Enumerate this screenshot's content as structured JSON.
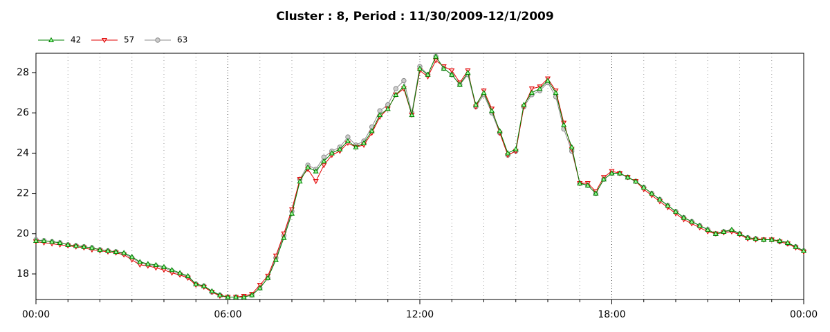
{
  "chart_data": {
    "type": "line",
    "title": "Cluster : 8, Period : 11/30/2009-12/1/2009",
    "x": [
      0,
      0.25,
      0.5,
      0.75,
      1,
      1.25,
      1.5,
      1.75,
      2,
      2.25,
      2.5,
      2.75,
      3,
      3.25,
      3.5,
      3.75,
      4,
      4.25,
      4.5,
      4.75,
      5,
      5.25,
      5.5,
      5.75,
      6,
      6.25,
      6.5,
      6.75,
      7,
      7.25,
      7.5,
      7.75,
      8,
      8.25,
      8.5,
      8.75,
      9,
      9.25,
      9.5,
      9.75,
      10,
      10.25,
      10.5,
      10.75,
      11,
      11.25,
      11.5,
      11.75,
      12,
      12.25,
      12.5,
      12.75,
      13,
      13.25,
      13.5,
      13.75,
      14,
      14.25,
      14.5,
      14.75,
      15,
      15.25,
      15.5,
      15.75,
      16,
      16.25,
      16.5,
      16.75,
      17,
      17.25,
      17.5,
      17.75,
      18,
      18.25,
      18.5,
      18.75,
      19,
      19.25,
      19.5,
      19.75,
      20,
      20.25,
      20.5,
      20.75,
      21,
      21.25,
      21.5,
      21.75,
      22,
      22.25,
      22.5,
      22.75,
      23,
      23.25,
      23.5,
      23.75,
      24
    ],
    "series": [
      {
        "name": "42",
        "color": "#008000",
        "marker": "triangle-up",
        "values": [
          19.65,
          19.65,
          19.6,
          19.55,
          19.45,
          19.4,
          19.35,
          19.3,
          19.2,
          19.15,
          19.1,
          19.05,
          18.85,
          18.6,
          18.5,
          18.45,
          18.35,
          18.2,
          18.05,
          17.9,
          17.5,
          17.4,
          17.15,
          16.95,
          16.85,
          16.85,
          16.85,
          16.95,
          17.3,
          17.8,
          18.7,
          19.8,
          21.0,
          22.6,
          23.3,
          23.1,
          23.6,
          24.0,
          24.2,
          24.6,
          24.3,
          24.5,
          25.1,
          25.9,
          26.2,
          26.9,
          27.3,
          25.9,
          28.2,
          27.9,
          28.8,
          28.2,
          27.9,
          27.4,
          28.0,
          26.4,
          27.0,
          26.1,
          25.1,
          24.0,
          24.2,
          26.4,
          27.0,
          27.2,
          27.6,
          27.0,
          25.4,
          24.3,
          22.5,
          22.4,
          22.0,
          22.7,
          23.0,
          23.0,
          22.8,
          22.6,
          22.3,
          22.0,
          21.7,
          21.4,
          21.1,
          20.8,
          20.6,
          20.4,
          20.2,
          20.0,
          20.1,
          20.2,
          20.0,
          19.8,
          19.75,
          19.7,
          19.7,
          19.65,
          19.55,
          19.35,
          19.15
        ]
      },
      {
        "name": "57",
        "color": "#e00000",
        "marker": "triangle-down",
        "values": [
          19.6,
          19.55,
          19.5,
          19.45,
          19.4,
          19.35,
          19.3,
          19.2,
          19.15,
          19.1,
          19.05,
          18.95,
          18.7,
          18.45,
          18.4,
          18.3,
          18.2,
          18.05,
          17.95,
          17.8,
          17.45,
          17.35,
          17.1,
          16.9,
          16.85,
          16.85,
          16.9,
          17.0,
          17.45,
          17.9,
          18.9,
          20.0,
          21.2,
          22.7,
          23.2,
          22.6,
          23.4,
          23.9,
          24.1,
          24.5,
          24.3,
          24.4,
          25.0,
          25.8,
          26.2,
          26.9,
          27.2,
          25.9,
          28.1,
          27.8,
          28.6,
          28.3,
          28.1,
          27.5,
          28.1,
          26.3,
          27.1,
          26.2,
          25.0,
          23.9,
          24.1,
          26.3,
          27.2,
          27.3,
          27.7,
          27.1,
          25.5,
          24.2,
          22.5,
          22.5,
          22.1,
          22.8,
          23.1,
          23.0,
          22.8,
          22.6,
          22.2,
          21.9,
          21.6,
          21.3,
          21.0,
          20.7,
          20.5,
          20.3,
          20.1,
          20.0,
          20.05,
          20.1,
          19.95,
          19.75,
          19.7,
          19.7,
          19.7,
          19.6,
          19.5,
          19.3,
          19.1
        ]
      },
      {
        "name": "63",
        "color": "#8c8c8c",
        "marker": "circle",
        "values": [
          19.7,
          19.65,
          19.6,
          19.55,
          19.45,
          19.4,
          19.35,
          19.3,
          19.2,
          19.15,
          19.1,
          19.0,
          18.8,
          18.55,
          18.45,
          18.4,
          18.3,
          18.15,
          18.0,
          17.85,
          17.5,
          17.4,
          17.1,
          16.95,
          16.85,
          16.85,
          16.85,
          16.95,
          17.3,
          17.8,
          18.8,
          19.9,
          21.1,
          22.7,
          23.4,
          23.2,
          23.8,
          24.1,
          24.3,
          24.8,
          24.4,
          24.6,
          25.3,
          26.1,
          26.4,
          27.2,
          27.6,
          26.0,
          28.3,
          27.9,
          28.8,
          28.2,
          27.9,
          27.4,
          27.9,
          26.3,
          26.9,
          26.0,
          25.0,
          23.9,
          24.1,
          26.3,
          26.9,
          27.1,
          27.5,
          26.8,
          25.2,
          24.1,
          22.5,
          22.4,
          22.0,
          22.7,
          23.0,
          23.0,
          22.8,
          22.6,
          22.3,
          22.0,
          21.7,
          21.4,
          21.1,
          20.8,
          20.6,
          20.4,
          20.2,
          20.0,
          20.1,
          20.15,
          20.0,
          19.8,
          19.75,
          19.7,
          19.7,
          19.6,
          19.5,
          19.35,
          19.15
        ]
      }
    ],
    "xlim": [
      0,
      24
    ],
    "xticks": [
      {
        "value": 0,
        "label": "00:00"
      },
      {
        "value": 6,
        "label": "06:00"
      },
      {
        "value": 12,
        "label": "12:00"
      },
      {
        "value": 18,
        "label": "18:00"
      },
      {
        "value": 24,
        "label": "00:00"
      }
    ],
    "xminorticks": [
      1,
      2,
      3,
      4,
      5,
      7,
      8,
      9,
      10,
      11,
      13,
      14,
      15,
      16,
      17,
      19,
      20,
      21,
      22,
      23
    ],
    "ylim": [
      16.73,
      28.96
    ],
    "yticks": [
      18,
      20,
      22,
      24,
      26,
      28
    ],
    "grid": true,
    "legend": "top-left"
  }
}
